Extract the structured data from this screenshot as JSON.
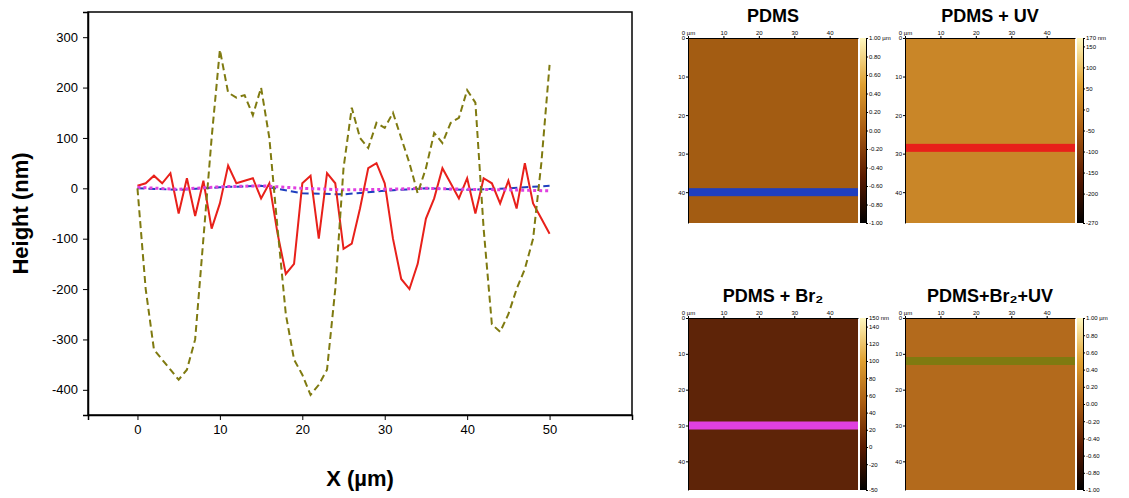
{
  "chart_data": {
    "type": "line",
    "x_label": "X (µm)",
    "y_label": "Height (nm)",
    "xlim": [
      -6,
      60
    ],
    "xticks": [
      0,
      10,
      20,
      30,
      40,
      50
    ],
    "ylim": [
      -450,
      350
    ],
    "yticks": [
      -400,
      -300,
      -200,
      -100,
      0,
      100,
      200,
      300
    ],
    "series": [
      {
        "name": "PDMS",
        "color": "#1f3fbf",
        "line_style": "dashed",
        "x": [
          0,
          5,
          10,
          15,
          20,
          25,
          30,
          35,
          40,
          45,
          50
        ],
        "values": [
          0,
          -3,
          2,
          5,
          -10,
          -12,
          -5,
          0,
          -3,
          0,
          5
        ]
      },
      {
        "name": "PDMS + UV",
        "color": "#e8201a",
        "line_style": "solid",
        "x": [
          0,
          1,
          2,
          3,
          4,
          5,
          6,
          7,
          8,
          9,
          10,
          11,
          12,
          13,
          14,
          15,
          16,
          17,
          18,
          19,
          20,
          21,
          22,
          23,
          24,
          25,
          26,
          27,
          28,
          29,
          30,
          31,
          32,
          33,
          34,
          35,
          36,
          37,
          38,
          39,
          40,
          41,
          42,
          43,
          44,
          45,
          46,
          47,
          48,
          49,
          50
        ],
        "values": [
          5,
          10,
          25,
          10,
          30,
          -50,
          20,
          -55,
          15,
          -80,
          -30,
          45,
          10,
          15,
          20,
          -20,
          10,
          -90,
          -170,
          -150,
          10,
          25,
          -100,
          30,
          10,
          -120,
          -110,
          -40,
          40,
          50,
          10,
          -100,
          -180,
          -200,
          -150,
          -60,
          -20,
          40,
          10,
          -20,
          20,
          -50,
          20,
          10,
          -30,
          15,
          -40,
          50,
          -30,
          -60,
          -90
        ]
      },
      {
        "name": "PDMS + Br₂",
        "color": "#e040e0",
        "line_style": "dotted",
        "x": [
          0,
          5,
          10,
          15,
          20,
          25,
          30,
          35,
          40,
          45,
          50
        ],
        "values": [
          2,
          -2,
          3,
          5,
          0,
          -3,
          -2,
          0,
          -2,
          -3,
          -5
        ]
      },
      {
        "name": "PDMS+Br₂+UV",
        "color": "#7f7a10",
        "line_style": "dashed",
        "x": [
          0,
          1,
          2,
          3,
          4,
          5,
          6,
          7,
          8,
          9,
          10,
          11,
          12,
          13,
          14,
          15,
          16,
          17,
          18,
          19,
          20,
          21,
          22,
          23,
          24,
          25,
          26,
          27,
          28,
          29,
          30,
          31,
          32,
          33,
          34,
          35,
          36,
          37,
          38,
          39,
          40,
          41,
          42,
          43,
          44,
          45,
          46,
          47,
          48,
          49,
          50
        ],
        "values": [
          0,
          -200,
          -320,
          -340,
          -360,
          -380,
          -360,
          -300,
          -100,
          100,
          275,
          190,
          180,
          185,
          145,
          200,
          100,
          -80,
          -250,
          -340,
          -370,
          -410,
          -390,
          -360,
          -200,
          40,
          160,
          100,
          80,
          130,
          120,
          150,
          100,
          50,
          -10,
          40,
          110,
          90,
          130,
          140,
          195,
          170,
          -80,
          -270,
          -285,
          -250,
          -200,
          -160,
          -100,
          50,
          245
        ]
      }
    ]
  },
  "afm_images": [
    {
      "xlim": [
        0,
        48
      ],
      "ylim": [
        0,
        48
      ],
      "x_ticks": [
        {
          "value": 0,
          "label": "0 µm"
        },
        10,
        20,
        30,
        40
      ],
      "y_ticks": [
        0,
        10,
        20,
        30,
        40
      ],
      "profile_y": 40,
      "colorbar": {
        "range": [
          -1,
          1
        ],
        "ticks": [
          {
            "value": 1,
            "label": "1.00 µm"
          },
          {
            "value": 0.8,
            "label": "0.80"
          },
          {
            "value": 0.6,
            "label": "0.60"
          },
          {
            "value": 0.4,
            "label": "0.40"
          },
          {
            "value": 0.2,
            "label": "0.20"
          },
          {
            "value": 0,
            "label": "0.00"
          },
          {
            "value": -0.2,
            "label": "-0.20"
          },
          {
            "value": -0.4,
            "label": "-0.40"
          },
          {
            "value": -0.6,
            "label": "-0.60"
          },
          {
            "value": -0.8,
            "label": "-0.80"
          },
          {
            "value": -1,
            "label": "-1.00"
          }
        ]
      }
    },
    {
      "xlim": [
        0,
        48
      ],
      "ylim": [
        0,
        48
      ],
      "x_ticks": [
        {
          "value": 0,
          "label": "0 µm"
        },
        10,
        20,
        30,
        40
      ],
      "y_ticks": [
        0,
        10,
        20,
        30,
        40
      ],
      "profile_y": 28.5,
      "colorbar": {
        "range": [
          -270,
          170
        ],
        "ticks": [
          {
            "value": 170,
            "label": "170 nm"
          },
          150,
          100,
          50,
          0,
          -50,
          -100,
          -150,
          -200,
          -270
        ]
      }
    },
    {
      "xlim": [
        0,
        48
      ],
      "ylim": [
        0,
        48
      ],
      "x_ticks": [
        {
          "value": 0,
          "label": "0 µm"
        },
        10,
        20,
        30,
        40
      ],
      "y_ticks": [
        0,
        10,
        20,
        30,
        40
      ],
      "profile_y": 30,
      "colorbar": {
        "range": [
          -50,
          150
        ],
        "ticks": [
          {
            "value": 150,
            "label": "150 nm"
          },
          140,
          120,
          100,
          80,
          60,
          40,
          20,
          0,
          -20,
          -50
        ]
      }
    },
    {
      "xlim": [
        0,
        48
      ],
      "ylim": [
        0,
        48
      ],
      "x_ticks": [
        {
          "value": 0,
          "label": "0 µm"
        },
        10,
        20,
        30,
        40
      ],
      "y_ticks": [
        0,
        10,
        20,
        30,
        40
      ],
      "profile_y": 12,
      "colorbar": {
        "range": [
          -1,
          1
        ],
        "ticks": [
          {
            "value": 1,
            "label": "1.00 µm"
          },
          {
            "value": 0.8,
            "label": "0.80"
          },
          {
            "value": 0.6,
            "label": "0.60"
          },
          {
            "value": 0.4,
            "label": "0.40"
          },
          {
            "value": 0.2,
            "label": "0.20"
          },
          {
            "value": 0,
            "label": "0.00"
          },
          {
            "value": -0.2,
            "label": "-0.20"
          },
          {
            "value": -0.4,
            "label": "-0.40"
          },
          {
            "value": -0.6,
            "label": "-0.60"
          },
          {
            "value": -0.8,
            "label": "-0.80"
          },
          {
            "value": -1,
            "label": "-1.00"
          }
        ]
      }
    }
  ]
}
